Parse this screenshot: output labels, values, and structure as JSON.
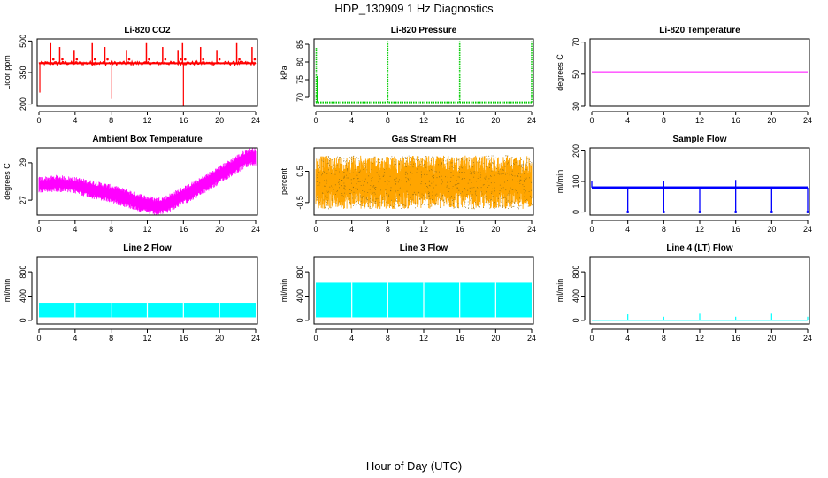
{
  "title": "HDP_130909  1 Hz Diagnostics",
  "xlabel": "Hour of Day (UTC)",
  "colors": {
    "co2": "#ff0000",
    "pressure": "#00cc00",
    "temperature": "#ff00ff",
    "ambient": "#ff00ff",
    "rh": "#ffa500",
    "rh_points": "#8b6914",
    "sample_flow": "#0000ff",
    "line_flow": "#00ffff"
  },
  "chart_data": [
    {
      "type": "line",
      "title": "Li-820 CO2",
      "ylabel": "Licor ppm",
      "xlim": [
        0,
        24
      ],
      "ylim": [
        190,
        510
      ],
      "xticks": [
        0,
        4,
        8,
        12,
        16,
        20,
        24
      ],
      "yticks": [
        200,
        350,
        500
      ],
      "baseline": 395,
      "spikes_up": [
        1.3,
        2.3,
        3.9,
        5.9,
        7.3,
        9.7,
        11.9,
        13.7,
        15.4,
        15.9,
        17.9,
        19.7,
        21.9,
        23.6
      ],
      "spike_up_value": 490,
      "spikes_down": [
        {
          "x": 0.1,
          "y": 255
        },
        {
          "x": 8.0,
          "y": 225
        },
        {
          "x": 16.0,
          "y": 190
        }
      ],
      "series": [
        {
          "values_x": [
            0,
            24
          ],
          "values_y": [
            395,
            395
          ]
        }
      ]
    },
    {
      "type": "line",
      "title": "Li-820 Pressure",
      "ylabel": "kPa",
      "xlim": [
        0,
        24
      ],
      "ylim": [
        67.5,
        86.5
      ],
      "xticks": [
        0,
        4,
        8,
        12,
        16,
        20,
        24
      ],
      "yticks": [
        70,
        75,
        80,
        85
      ],
      "baseline": 68.6,
      "spikes": [
        {
          "x": 0.05,
          "y": 84
        },
        {
          "x": 8.0,
          "y": 86
        },
        {
          "x": 16.0,
          "y": 86
        },
        {
          "x": 24.0,
          "y": 86
        }
      ]
    },
    {
      "type": "line",
      "title": "Li-820 Temperature",
      "ylabel": "degrees C",
      "xlim": [
        0,
        24
      ],
      "ylim": [
        30,
        72
      ],
      "xticks": [
        0,
        4,
        8,
        12,
        16,
        20,
        24
      ],
      "yticks": [
        30,
        50,
        70
      ],
      "x": [
        0,
        24
      ],
      "y": [
        51.5,
        51.5
      ]
    },
    {
      "type": "area",
      "title": "Ambient Box Temperature",
      "ylabel": "degrees C",
      "xlim": [
        0,
        24
      ],
      "ylim": [
        26.2,
        29.8
      ],
      "xticks": [
        0,
        4,
        8,
        12,
        16,
        20,
        24
      ],
      "yticks": [
        27,
        29
      ],
      "x": [
        0,
        2,
        4,
        6,
        8,
        10,
        12,
        13,
        14,
        16,
        18,
        20,
        22,
        23,
        24
      ],
      "upper": [
        28.0,
        28.1,
        28.0,
        27.8,
        27.6,
        27.3,
        27.0,
        26.9,
        27.0,
        27.5,
        28.0,
        28.6,
        29.2,
        29.5,
        29.6
      ],
      "lower": [
        27.6,
        27.7,
        27.6,
        27.3,
        27.1,
        26.8,
        26.5,
        26.4,
        26.5,
        27.0,
        27.5,
        28.1,
        28.7,
        29.0,
        29.1
      ]
    },
    {
      "type": "scatter",
      "title": "Gas Stream RH",
      "ylabel": "percent",
      "xlim": [
        0,
        24
      ],
      "ylim": [
        -0.9,
        1.25
      ],
      "xticks": [
        0,
        4,
        8,
        12,
        16,
        20,
        24
      ],
      "yticks": [
        -0.5,
        0.5
      ],
      "band_low": -0.7,
      "band_high": 1.0
    },
    {
      "type": "line",
      "title": "Sample Flow",
      "ylabel": "ml/min",
      "xlim": [
        0,
        24
      ],
      "ylim": [
        -10,
        210
      ],
      "xticks": [
        0,
        4,
        8,
        12,
        16,
        20,
        24
      ],
      "yticks": [
        0,
        100,
        200
      ],
      "baseline": 80,
      "dips": [
        4,
        8,
        12,
        16,
        20,
        24
      ],
      "dip_value": 0,
      "peaks": [
        {
          "x": 0,
          "y": 100
        },
        {
          "x": 8,
          "y": 100
        },
        {
          "x": 16,
          "y": 105
        }
      ]
    },
    {
      "type": "area",
      "title": "Line 2 Flow",
      "ylabel": "ml/min",
      "xlim": [
        0,
        24
      ],
      "ylim": [
        -60,
        1050
      ],
      "xticks": [
        0,
        4,
        8,
        12,
        16,
        20,
        24
      ],
      "yticks": [
        0,
        400,
        800
      ],
      "band_low": 50,
      "band_high": 290,
      "gaps": [
        4,
        8,
        12,
        16,
        20
      ]
    },
    {
      "type": "area",
      "title": "Line 3 Flow",
      "ylabel": "ml/min",
      "xlim": [
        0,
        24
      ],
      "ylim": [
        -60,
        1050
      ],
      "xticks": [
        0,
        4,
        8,
        12,
        16,
        20,
        24
      ],
      "yticks": [
        0,
        400,
        800
      ],
      "band_low": 50,
      "band_high": 620,
      "gaps": [
        4,
        8,
        12,
        16,
        20
      ]
    },
    {
      "type": "line",
      "title": "Line 4 (LT) Flow",
      "ylabel": "ml/min",
      "xlim": [
        0,
        24
      ],
      "ylim": [
        -60,
        1050
      ],
      "xticks": [
        0,
        4,
        8,
        12,
        16,
        20,
        24
      ],
      "yticks": [
        0,
        400,
        800
      ],
      "baseline": 0,
      "spikes": [
        {
          "x": 4,
          "y": 100
        },
        {
          "x": 8,
          "y": 60
        },
        {
          "x": 12,
          "y": 110
        },
        {
          "x": 16,
          "y": 60
        },
        {
          "x": 20,
          "y": 110
        },
        {
          "x": 24,
          "y": 60
        }
      ]
    }
  ]
}
